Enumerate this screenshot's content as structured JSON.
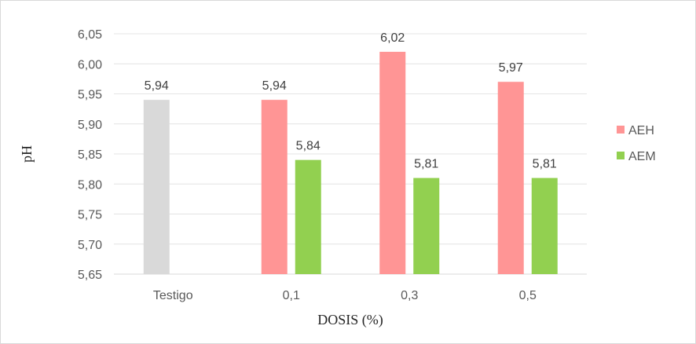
{
  "chart_data": {
    "type": "bar",
    "title": "",
    "xlabel": "DOSIS (%)",
    "ylabel": "pH",
    "categories": [
      "Testigo",
      "0,1",
      "0,3",
      "0,5"
    ],
    "ylim": [
      5.65,
      6.05
    ],
    "yticks": [
      "5,65",
      "5,70",
      "5,75",
      "5,80",
      "5,85",
      "5,90",
      "5,95",
      "6,00",
      "6,05"
    ],
    "ytick_values": [
      5.65,
      5.7,
      5.75,
      5.8,
      5.85,
      5.9,
      5.95,
      6.0,
      6.05
    ],
    "grid": true,
    "legend_position": "right",
    "control": {
      "category": "Testigo",
      "value": 5.94,
      "label": "5,94",
      "color": "#d9d9d9"
    },
    "series": [
      {
        "name": "AEH",
        "color": "#ff9595",
        "values": [
          null,
          5.94,
          6.02,
          5.97
        ],
        "labels": [
          "",
          "5,94",
          "6,02",
          "5,97"
        ]
      },
      {
        "name": "AEM",
        "color": "#92d050",
        "values": [
          null,
          5.84,
          5.81,
          5.81
        ],
        "labels": [
          "",
          "5,84",
          "5,81",
          "5,81"
        ]
      }
    ]
  }
}
